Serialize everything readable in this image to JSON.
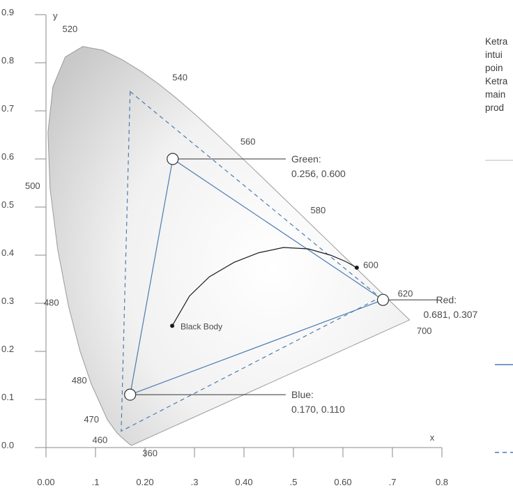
{
  "chart_data": {
    "type": "scatter",
    "title": "",
    "xlabel": "x",
    "ylabel": "y",
    "xlim": [
      0,
      0.8
    ],
    "ylim": [
      0,
      0.9
    ],
    "grid": false,
    "x_tick_labels": [
      "0.00",
      ".1",
      "0.20",
      ".3",
      "0.40",
      ".5",
      "0.60",
      ".7",
      "0.8"
    ],
    "y_tick_labels": [
      "0.0",
      "0.1",
      "0.2",
      "0.3",
      "0.4",
      "0.5",
      "0.6",
      "0.7",
      "0.8",
      "0.9"
    ],
    "spectral_locus": [
      [
        0.1741,
        0.005
      ],
      [
        0.1738,
        0.0049
      ],
      [
        0.1733,
        0.0048
      ],
      [
        0.1726,
        0.0048
      ],
      [
        0.1714,
        0.0051
      ],
      [
        0.1689,
        0.0069
      ],
      [
        0.1644,
        0.0109
      ],
      [
        0.1566,
        0.0177
      ],
      [
        0.144,
        0.0297
      ],
      [
        0.1241,
        0.0578
      ],
      [
        0.0913,
        0.1327
      ],
      [
        0.0687,
        0.2007
      ],
      [
        0.0454,
        0.295
      ],
      [
        0.0235,
        0.4127
      ],
      [
        0.0082,
        0.5384
      ],
      [
        0.0039,
        0.6548
      ],
      [
        0.0139,
        0.7502
      ],
      [
        0.0389,
        0.812
      ],
      [
        0.0743,
        0.8338
      ],
      [
        0.1142,
        0.8262
      ],
      [
        0.1547,
        0.8059
      ],
      [
        0.1929,
        0.7816
      ],
      [
        0.2296,
        0.7543
      ],
      [
        0.2658,
        0.7243
      ],
      [
        0.3016,
        0.6923
      ],
      [
        0.3373,
        0.6589
      ],
      [
        0.3731,
        0.6245
      ],
      [
        0.4087,
        0.5896
      ],
      [
        0.4441,
        0.5547
      ],
      [
        0.4788,
        0.5202
      ],
      [
        0.5125,
        0.4866
      ],
      [
        0.5448,
        0.4544
      ],
      [
        0.5752,
        0.4242
      ],
      [
        0.6029,
        0.3965
      ],
      [
        0.627,
        0.3725
      ],
      [
        0.6482,
        0.3514
      ],
      [
        0.6658,
        0.334
      ],
      [
        0.6801,
        0.3197
      ],
      [
        0.6915,
        0.3083
      ],
      [
        0.7006,
        0.2993
      ],
      [
        0.7079,
        0.292
      ],
      [
        0.714,
        0.2859
      ],
      [
        0.719,
        0.2809
      ],
      [
        0.723,
        0.277
      ],
      [
        0.726,
        0.274
      ],
      [
        0.7283,
        0.2717
      ],
      [
        0.73,
        0.27
      ],
      [
        0.7311,
        0.2689
      ],
      [
        0.732,
        0.268
      ],
      [
        0.7327,
        0.2673
      ],
      [
        0.7334,
        0.2666
      ],
      [
        0.734,
        0.266
      ],
      [
        0.7344,
        0.2656
      ],
      [
        0.7346,
        0.2654
      ],
      [
        0.7347,
        0.2653
      ]
    ],
    "wavelength_labels": [
      {
        "text": "520",
        "x": 0.074,
        "y": 0.834
      },
      {
        "text": "540",
        "x": 0.23,
        "y": 0.754
      },
      {
        "text": "560",
        "x": 0.373,
        "y": 0.624
      },
      {
        "text": "580",
        "x": 0.512,
        "y": 0.487
      },
      {
        "text": "600",
        "x": 0.627,
        "y": 0.373
      },
      {
        "text": "620",
        "x": 0.691,
        "y": 0.308
      },
      {
        "text": "700",
        "x": 0.735,
        "y": 0.265
      },
      {
        "text": "500",
        "x": 0.008,
        "y": 0.538
      },
      {
        "text": "480",
        "x": 0.091,
        "y": 0.133
      },
      {
        "text": "470",
        "x": 0.124,
        "y": 0.058
      },
      {
        "text": "460",
        "x": 0.144,
        "y": 0.03
      },
      {
        "text": "480",
        "x": 0.046,
        "y": 0.295
      },
      {
        "text": "360",
        "x": 0.175,
        "y": 0.005
      }
    ],
    "series": [
      {
        "name": "Ketra",
        "style": "solid",
        "color": "#4a7bb0",
        "points": [
          {
            "x": 0.256,
            "y": 0.6,
            "label": "Green:",
            "value": "0.256, 0.600"
          },
          {
            "x": 0.681,
            "y": 0.307,
            "label": "Red:",
            "value": "0.681, 0.307"
          },
          {
            "x": 0.17,
            "y": 0.11,
            "label": "Blue:",
            "value": "0.170, 0.110"
          }
        ]
      },
      {
        "name": "",
        "style": "dashed",
        "color": "#4a7bb0",
        "points": [
          {
            "x": 0.17,
            "y": 0.74
          },
          {
            "x": 0.675,
            "y": 0.312
          },
          {
            "x": 0.152,
            "y": 0.034
          }
        ]
      }
    ],
    "black_body": {
      "label": "Black Body",
      "points": [
        [
          0.255,
          0.253
        ],
        [
          0.29,
          0.315
        ],
        [
          0.33,
          0.355
        ],
        [
          0.38,
          0.385
        ],
        [
          0.43,
          0.405
        ],
        [
          0.48,
          0.416
        ],
        [
          0.53,
          0.413
        ],
        [
          0.575,
          0.4
        ],
        [
          0.605,
          0.387
        ],
        [
          0.628,
          0.374
        ]
      ]
    }
  },
  "side_text": {
    "lines": [
      "Ketra",
      "intui",
      "poin",
      "Ketra",
      "main",
      "prod"
    ]
  }
}
